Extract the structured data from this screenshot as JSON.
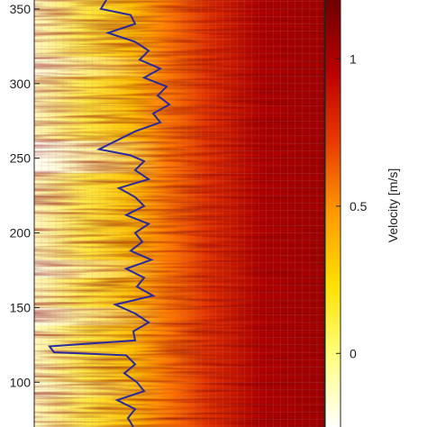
{
  "chart_data": {
    "type": "heatmap",
    "title": "",
    "xlabel": "",
    "ylabel": "",
    "y_ticks": [
      100,
      150,
      200,
      250,
      300,
      350
    ],
    "ylim": [
      70,
      356
    ],
    "colorbar": {
      "label": "Velocity [m/s]",
      "ticks": [
        0,
        0.5,
        1
      ],
      "range": [
        -0.25,
        1.2
      ],
      "colormap": [
        "#ffffff",
        "#ffff80",
        "#ffe000",
        "#ff9a00",
        "#e83a00",
        "#b80000",
        "#6e0000"
      ]
    },
    "grid": true,
    "gridColor": "#999999",
    "boundary": {
      "color": "#2a2a9a",
      "description": "interface line",
      "points": [
        [
          70,
          148
        ],
        [
          76,
          142
        ],
        [
          82,
          150
        ],
        [
          88,
          130
        ],
        [
          94,
          160
        ],
        [
          100,
          152
        ],
        [
          106,
          138
        ],
        [
          112,
          150
        ],
        [
          118,
          140
        ],
        [
          120,
          60
        ],
        [
          124,
          55
        ],
        [
          128,
          150
        ],
        [
          134,
          148
        ],
        [
          140,
          165
        ],
        [
          146,
          150
        ],
        [
          152,
          128
        ],
        [
          158,
          170
        ],
        [
          164,
          152
        ],
        [
          170,
          160
        ],
        [
          176,
          140
        ],
        [
          182,
          168
        ],
        [
          188,
          145
        ],
        [
          194,
          158
        ],
        [
          200,
          150
        ],
        [
          206,
          165
        ],
        [
          212,
          140
        ],
        [
          218,
          160
        ],
        [
          224,
          150
        ],
        [
          230,
          132
        ],
        [
          236,
          165
        ],
        [
          242,
          150
        ],
        [
          248,
          160
        ],
        [
          252,
          145
        ],
        [
          256,
          110
        ],
        [
          262,
          130
        ],
        [
          268,
          150
        ],
        [
          274,
          178
        ],
        [
          280,
          170
        ],
        [
          286,
          188
        ],
        [
          292,
          175
        ],
        [
          298,
          185
        ],
        [
          304,
          160
        ],
        [
          310,
          178
        ],
        [
          316,
          155
        ],
        [
          322,
          165
        ],
        [
          328,
          150
        ],
        [
          334,
          120
        ],
        [
          340,
          150
        ],
        [
          346,
          145
        ],
        [
          350,
          112
        ],
        [
          356,
          118
        ]
      ]
    }
  }
}
